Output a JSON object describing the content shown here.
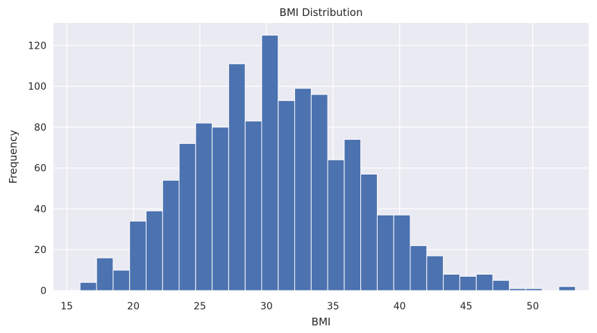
{
  "chart_data": {
    "type": "bar",
    "title": "BMI Distribution",
    "xlabel": "BMI",
    "ylabel": "Frequency",
    "xlim": [
      14.0,
      54.2
    ],
    "ylim": [
      0,
      131
    ],
    "xticks": [
      15,
      20,
      25,
      30,
      35,
      40,
      45,
      50
    ],
    "yticks": [
      0,
      20,
      40,
      60,
      80,
      100,
      120
    ],
    "grid": true,
    "bins": [
      {
        "x0": 16.0,
        "x1": 17.24,
        "value": 4
      },
      {
        "x0": 17.24,
        "x1": 18.48,
        "value": 16
      },
      {
        "x0": 18.48,
        "x1": 19.72,
        "value": 10
      },
      {
        "x0": 19.72,
        "x1": 20.96,
        "value": 34
      },
      {
        "x0": 20.96,
        "x1": 22.2,
        "value": 39
      },
      {
        "x0": 22.2,
        "x1": 23.44,
        "value": 54
      },
      {
        "x0": 23.44,
        "x1": 24.68,
        "value": 72
      },
      {
        "x0": 24.68,
        "x1": 25.92,
        "value": 82
      },
      {
        "x0": 25.92,
        "x1": 27.16,
        "value": 80
      },
      {
        "x0": 27.16,
        "x1": 28.4,
        "value": 111
      },
      {
        "x0": 28.4,
        "x1": 29.64,
        "value": 83
      },
      {
        "x0": 29.64,
        "x1": 30.88,
        "value": 125
      },
      {
        "x0": 30.88,
        "x1": 32.12,
        "value": 93
      },
      {
        "x0": 32.12,
        "x1": 33.36,
        "value": 99
      },
      {
        "x0": 33.36,
        "x1": 34.6,
        "value": 96
      },
      {
        "x0": 34.6,
        "x1": 35.84,
        "value": 64
      },
      {
        "x0": 35.84,
        "x1": 37.08,
        "value": 74
      },
      {
        "x0": 37.08,
        "x1": 38.32,
        "value": 57
      },
      {
        "x0": 38.32,
        "x1": 39.56,
        "value": 37
      },
      {
        "x0": 39.56,
        "x1": 40.8,
        "value": 37
      },
      {
        "x0": 40.8,
        "x1": 42.04,
        "value": 22
      },
      {
        "x0": 42.04,
        "x1": 43.28,
        "value": 17
      },
      {
        "x0": 43.28,
        "x1": 44.52,
        "value": 8
      },
      {
        "x0": 44.52,
        "x1": 45.76,
        "value": 7
      },
      {
        "x0": 45.76,
        "x1": 47.0,
        "value": 8
      },
      {
        "x0": 47.0,
        "x1": 48.24,
        "value": 5
      },
      {
        "x0": 48.24,
        "x1": 49.48,
        "value": 1
      },
      {
        "x0": 49.48,
        "x1": 50.72,
        "value": 1
      },
      {
        "x0": 50.72,
        "x1": 51.96,
        "value": 0
      },
      {
        "x0": 51.96,
        "x1": 53.2,
        "value": 2
      }
    ]
  },
  "colors": {
    "bar_fill": "#4c72b0",
    "bar_edge": "#ffffff",
    "plot_bg": "#eaeaf2",
    "grid": "#ffffff",
    "text": "#262626"
  }
}
